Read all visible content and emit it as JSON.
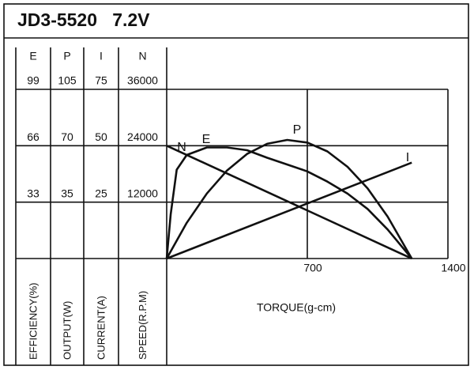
{
  "chart_data": {
    "type": "line",
    "title": "JD3-5520   7.2V",
    "x_label": "TORQUE(g-cm)",
    "xlim": [
      0,
      1400
    ],
    "xticks": [
      700,
      1400
    ],
    "grid": true,
    "scales": [
      {
        "name": "E",
        "axis_label": "EFFICIENCY(%)",
        "ylim": [
          0,
          99
        ],
        "yticks": [
          33,
          66,
          99
        ]
      },
      {
        "name": "P",
        "axis_label": "OUTPUT(W)",
        "ylim": [
          0,
          105
        ],
        "yticks": [
          35,
          70,
          105
        ]
      },
      {
        "name": "I",
        "axis_label": "CURRENT(A)",
        "ylim": [
          0,
          75
        ],
        "yticks": [
          25,
          50,
          75
        ]
      },
      {
        "name": "N",
        "axis_label": "SPEED(R.P.M)",
        "ylim": [
          0,
          36000
        ],
        "yticks": [
          12000,
          24000,
          36000
        ]
      }
    ],
    "series": [
      {
        "name": "N",
        "axis": "N",
        "color": "#111111",
        "x": [
          0,
          1220
        ],
        "values": [
          24000,
          0
        ]
      },
      {
        "name": "E",
        "axis": "E",
        "color": "#111111",
        "x": [
          0,
          20,
          50,
          100,
          200,
          300,
          400,
          500,
          600,
          700,
          800,
          900,
          1000,
          1100,
          1220
        ],
        "values": [
          0,
          26,
          52,
          60.6,
          65,
          65,
          63.4,
          59,
          55,
          51,
          45,
          38,
          29,
          17,
          0
        ]
      },
      {
        "name": "P",
        "axis": "P",
        "color": "#111111",
        "x": [
          0,
          100,
          200,
          300,
          400,
          500,
          600,
          700,
          800,
          900,
          1000,
          1100,
          1220
        ],
        "values": [
          0,
          22.2,
          40.4,
          54.6,
          64.9,
          71.2,
          73.6,
          72,
          66.5,
          56.9,
          43.5,
          26,
          0
        ]
      },
      {
        "name": "I",
        "axis": "I",
        "color": "#111111",
        "x": [
          0,
          1220
        ],
        "values": [
          0,
          42.5
        ]
      }
    ]
  }
}
